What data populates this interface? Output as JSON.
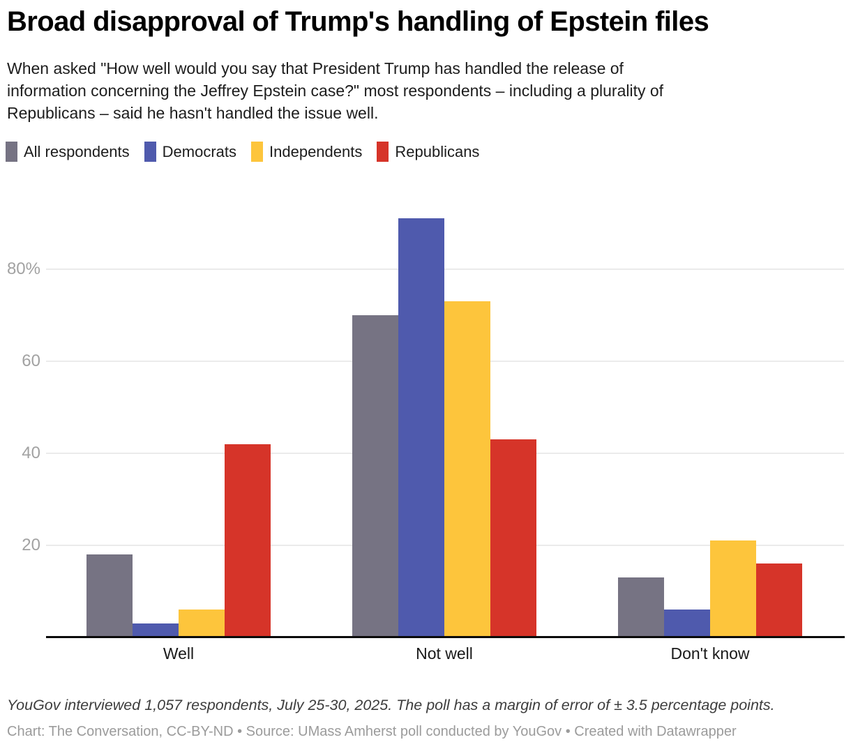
{
  "header": {
    "description_lines": [
      "When asked \"How well would you say that President Trump has handled the release of",
      "information concerning the Jeffrey Epstein case?\" most respondents – including a plurality of",
      "Republicans – said he hasn't handled the issue well."
    ]
  },
  "chart_data": {
    "type": "bar",
    "title": "Broad disapproval of Trump's handling of Epstein files",
    "categories": [
      "Well",
      "Not well",
      "Don't know"
    ],
    "series": [
      {
        "name": "All respondents",
        "color": "#767383",
        "values": [
          18,
          70,
          13
        ]
      },
      {
        "name": "Democrats",
        "color": "#4f5aad",
        "values": [
          3,
          91,
          6
        ]
      },
      {
        "name": "Independents",
        "color": "#fdc53c",
        "values": [
          6,
          73,
          21
        ]
      },
      {
        "name": "Republicans",
        "color": "#d63429",
        "values": [
          42,
          43,
          16
        ]
      }
    ],
    "unit": "%",
    "ylim": [
      0,
      100
    ],
    "y_ticks": [
      {
        "value": 20,
        "label": "20"
      },
      {
        "value": 40,
        "label": "40"
      },
      {
        "value": 60,
        "label": "60"
      },
      {
        "value": 80,
        "label": "80%"
      }
    ],
    "grid": true,
    "legend_position": "top",
    "axis_colors": {
      "gridline": "#ebebeb",
      "baseline": "#0a0a0a",
      "tick_text": "#a2a2a2"
    }
  },
  "footer": {
    "note": "YouGov interviewed 1,057 respondents, July 25-30, 2025. The poll has a margin of error of ± 3.5 percentage points.",
    "credit": "Chart: The Conversation, CC-BY-ND • Source: UMass Amherst poll conducted by YouGov • Created with Datawrapper"
  }
}
